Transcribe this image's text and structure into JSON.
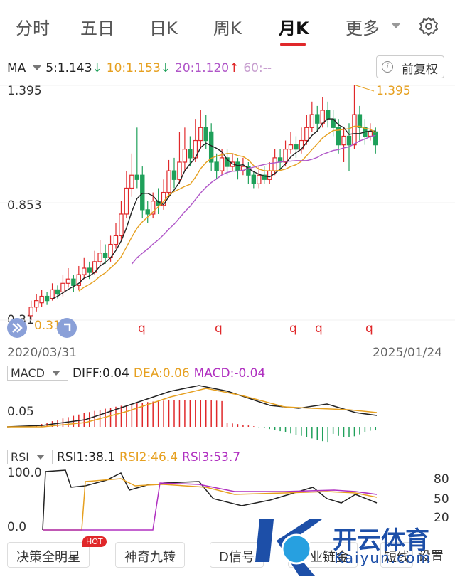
{
  "tabs": [
    {
      "label": "分时",
      "active": false
    },
    {
      "label": "五日",
      "active": false
    },
    {
      "label": "日K",
      "active": false
    },
    {
      "label": "周K",
      "active": false
    },
    {
      "label": "月K",
      "active": true
    },
    {
      "label": "更多",
      "active": false
    }
  ],
  "ma": {
    "label": "MA",
    "ma5": "5:1.143",
    "ma10": "10:1.153",
    "ma20": "20:1.120",
    "ma60": "60:--",
    "colors": {
      "ma5": "#222222",
      "ma10": "#e6a020",
      "ma20": "#b056c8",
      "ma60": "#c8a0d0"
    }
  },
  "fuquan_button": "前复权",
  "price_axis": {
    "high": "1.395",
    "mid": "0.853",
    "low": "0.31"
  },
  "annotations": {
    "max_label": "1.395",
    "min_label": "0.31"
  },
  "date_axis": {
    "start": "2020/03/31",
    "end": "2025/01/24"
  },
  "macd": {
    "label": "MACD",
    "diff": "DIFF:0.04",
    "dea": "DEA:0.06",
    "macd": "MACD:-0.04",
    "axis_label": "0.05"
  },
  "rsi": {
    "label": "RSI",
    "rsi1": "RSI1:38.1",
    "rsi2": "RSI2:46.4",
    "rsi3": "RSI3:53.7",
    "axis_top": "100.0",
    "axis_bottom": "0.0",
    "right_80": "80",
    "right_50": "50",
    "right_20": "20"
  },
  "q_marker": "q",
  "bottom_buttons": [
    "决策全明星",
    "神奇九转",
    "D信号",
    "产业链金",
    "短线",
    "设置"
  ],
  "hot_badge": "HOT",
  "watermark": {
    "text": "开云体育",
    "sub": "Kaiyun.com"
  },
  "colors": {
    "up": "#e0282a",
    "down": "#1fa05a",
    "accent": "#e0282a"
  },
  "chart_data": {
    "type": "candlestick",
    "ylim": [
      0.31,
      1.395
    ],
    "x_range": [
      "2020/03/31",
      "2025/01/24"
    ],
    "candles": [
      {
        "o": 0.33,
        "c": 0.37,
        "h": 0.4,
        "l": 0.31
      },
      {
        "o": 0.37,
        "c": 0.4,
        "h": 0.43,
        "l": 0.35
      },
      {
        "o": 0.39,
        "c": 0.42,
        "h": 0.45,
        "l": 0.37
      },
      {
        "o": 0.42,
        "c": 0.4,
        "h": 0.44,
        "l": 0.38
      },
      {
        "o": 0.41,
        "c": 0.45,
        "h": 0.48,
        "l": 0.4
      },
      {
        "o": 0.45,
        "c": 0.43,
        "h": 0.47,
        "l": 0.41
      },
      {
        "o": 0.44,
        "c": 0.48,
        "h": 0.52,
        "l": 0.42
      },
      {
        "o": 0.48,
        "c": 0.5,
        "h": 0.55,
        "l": 0.46
      },
      {
        "o": 0.5,
        "c": 0.47,
        "h": 0.52,
        "l": 0.44
      },
      {
        "o": 0.47,
        "c": 0.52,
        "h": 0.56,
        "l": 0.45
      },
      {
        "o": 0.52,
        "c": 0.55,
        "h": 0.6,
        "l": 0.5
      },
      {
        "o": 0.55,
        "c": 0.53,
        "h": 0.58,
        "l": 0.5
      },
      {
        "o": 0.53,
        "c": 0.58,
        "h": 0.63,
        "l": 0.52
      },
      {
        "o": 0.58,
        "c": 0.62,
        "h": 0.68,
        "l": 0.56
      },
      {
        "o": 0.62,
        "c": 0.6,
        "h": 0.66,
        "l": 0.57
      },
      {
        "o": 0.6,
        "c": 0.66,
        "h": 0.7,
        "l": 0.58
      },
      {
        "o": 0.66,
        "c": 0.7,
        "h": 0.76,
        "l": 0.64
      },
      {
        "o": 0.7,
        "c": 0.8,
        "h": 0.86,
        "l": 0.68
      },
      {
        "o": 0.8,
        "c": 0.92,
        "h": 1.0,
        "l": 0.78
      },
      {
        "o": 0.92,
        "c": 0.98,
        "h": 1.08,
        "l": 0.88
      },
      {
        "o": 0.98,
        "c": 0.96,
        "h": 1.2,
        "l": 0.92
      },
      {
        "o": 0.98,
        "c": 0.82,
        "h": 1.02,
        "l": 0.78
      },
      {
        "o": 0.82,
        "c": 0.8,
        "h": 0.86,
        "l": 0.76
      },
      {
        "o": 0.8,
        "c": 0.86,
        "h": 0.9,
        "l": 0.78
      },
      {
        "o": 0.86,
        "c": 0.84,
        "h": 0.92,
        "l": 0.8
      },
      {
        "o": 0.84,
        "c": 0.9,
        "h": 0.96,
        "l": 0.82
      },
      {
        "o": 0.9,
        "c": 1.0,
        "h": 1.05,
        "l": 0.88
      },
      {
        "o": 1.0,
        "c": 0.96,
        "h": 1.06,
        "l": 0.92
      },
      {
        "o": 0.96,
        "c": 1.04,
        "h": 1.18,
        "l": 0.94
      },
      {
        "o": 1.04,
        "c": 1.1,
        "h": 1.2,
        "l": 1.0
      },
      {
        "o": 1.1,
        "c": 1.06,
        "h": 1.16,
        "l": 1.02
      },
      {
        "o": 1.06,
        "c": 1.14,
        "h": 1.24,
        "l": 1.04
      },
      {
        "o": 1.14,
        "c": 1.2,
        "h": 1.28,
        "l": 1.1
      },
      {
        "o": 1.2,
        "c": 1.14,
        "h": 1.26,
        "l": 1.1
      },
      {
        "o": 1.18,
        "c": 1.04,
        "h": 1.22,
        "l": 1.0
      },
      {
        "o": 1.04,
        "c": 1.0,
        "h": 1.08,
        "l": 0.96
      },
      {
        "o": 1.0,
        "c": 1.06,
        "h": 1.1,
        "l": 0.98
      },
      {
        "o": 1.06,
        "c": 1.02,
        "h": 1.1,
        "l": 0.98
      },
      {
        "o": 1.02,
        "c": 1.04,
        "h": 1.08,
        "l": 1.0
      },
      {
        "o": 1.04,
        "c": 1.0,
        "h": 1.06,
        "l": 0.96
      },
      {
        "o": 1.0,
        "c": 1.02,
        "h": 1.06,
        "l": 0.98
      },
      {
        "o": 1.02,
        "c": 0.98,
        "h": 1.04,
        "l": 0.94
      },
      {
        "o": 0.98,
        "c": 0.94,
        "h": 1.0,
        "l": 0.92
      },
      {
        "o": 0.94,
        "c": 0.98,
        "h": 1.02,
        "l": 0.92
      },
      {
        "o": 0.98,
        "c": 0.96,
        "h": 1.02,
        "l": 0.94
      },
      {
        "o": 0.96,
        "c": 1.0,
        "h": 1.04,
        "l": 0.94
      },
      {
        "o": 1.0,
        "c": 1.06,
        "h": 1.1,
        "l": 0.98
      },
      {
        "o": 1.06,
        "c": 1.04,
        "h": 1.1,
        "l": 1.0
      },
      {
        "o": 1.04,
        "c": 1.1,
        "h": 1.14,
        "l": 1.02
      },
      {
        "o": 1.1,
        "c": 1.12,
        "h": 1.18,
        "l": 1.08
      },
      {
        "o": 1.12,
        "c": 1.1,
        "h": 1.16,
        "l": 1.06
      },
      {
        "o": 1.1,
        "c": 1.14,
        "h": 1.2,
        "l": 1.08
      },
      {
        "o": 1.14,
        "c": 1.2,
        "h": 1.26,
        "l": 1.12
      },
      {
        "o": 1.2,
        "c": 1.26,
        "h": 1.32,
        "l": 1.18
      },
      {
        "o": 1.26,
        "c": 1.22,
        "h": 1.3,
        "l": 1.18
      },
      {
        "o": 1.22,
        "c": 1.28,
        "h": 1.34,
        "l": 1.2
      },
      {
        "o": 1.28,
        "c": 1.24,
        "h": 1.32,
        "l": 1.2
      },
      {
        "o": 1.24,
        "c": 1.2,
        "h": 1.28,
        "l": 1.16
      },
      {
        "o": 1.2,
        "c": 1.12,
        "h": 1.24,
        "l": 1.08
      },
      {
        "o": 1.12,
        "c": 1.16,
        "h": 1.2,
        "l": 1.04
      },
      {
        "o": 1.16,
        "c": 1.12,
        "h": 1.22,
        "l": 1.0
      },
      {
        "o": 1.12,
        "c": 1.26,
        "h": 1.395,
        "l": 1.1
      },
      {
        "o": 1.26,
        "c": 1.2,
        "h": 1.3,
        "l": 1.14
      },
      {
        "o": 1.2,
        "c": 1.16,
        "h": 1.24,
        "l": 1.12
      },
      {
        "o": 1.16,
        "c": 1.18,
        "h": 1.22,
        "l": 1.14
      },
      {
        "o": 1.18,
        "c": 1.12,
        "h": 1.2,
        "l": 1.08
      }
    ],
    "ma5_color": "#222222",
    "ma10_color": "#e6a020",
    "ma20_color": "#b056c8"
  }
}
